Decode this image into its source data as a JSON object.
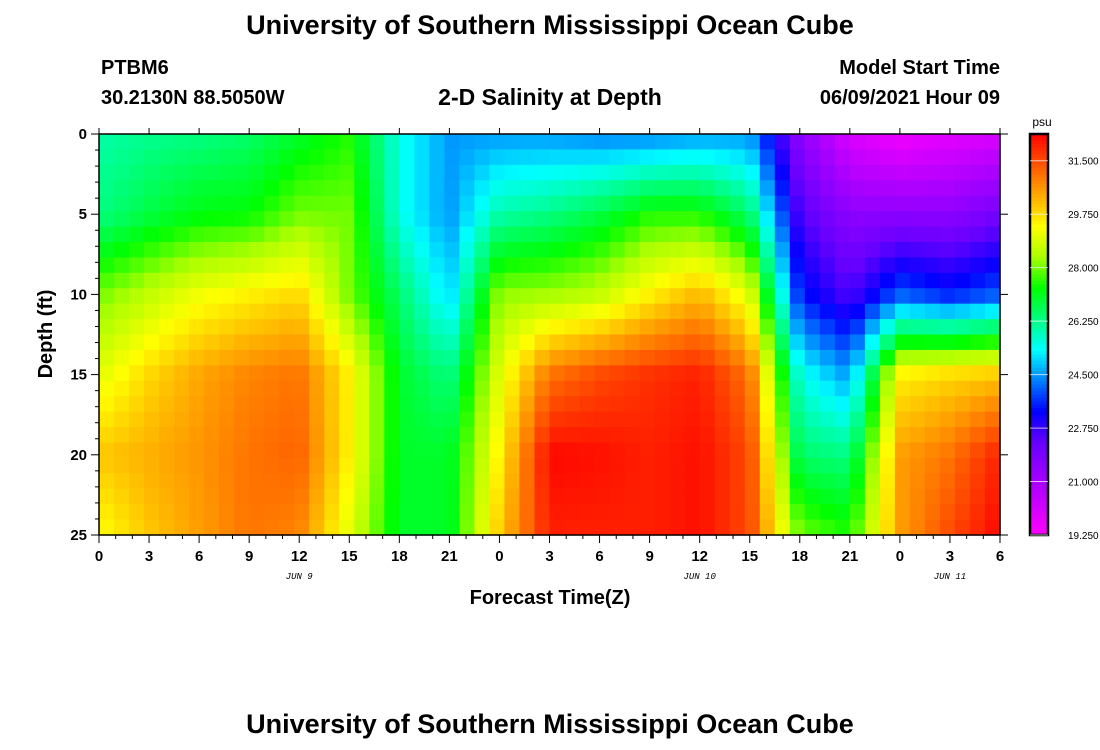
{
  "header": {
    "title": "University of Southern Mississippi Ocean Cube",
    "station": "PTBM6",
    "coords": "30.2130N  88.5050W",
    "plot_title": "2-D Salinity at Depth",
    "model_label": "Model Start Time",
    "model_time": "06/09/2021 Hour 09"
  },
  "footer": {
    "title": "University of Southern Mississippi Ocean Cube"
  },
  "chart_data": {
    "type": "heatmap",
    "title": "2-D Salinity at Depth",
    "xlabel": "Forecast Time(Z)",
    "ylabel": "Depth (ft)",
    "x_range_hours": [
      0,
      54
    ],
    "x_ticks": [
      "0",
      "3",
      "6",
      "9",
      "12",
      "15",
      "18",
      "21",
      "0",
      "3",
      "6",
      "9",
      "12",
      "15",
      "18",
      "21",
      "0",
      "3",
      "6"
    ],
    "y_ticks": [
      "0",
      "5",
      "10",
      "15",
      "20",
      "25"
    ],
    "y_range": [
      0,
      25
    ],
    "day_labels": [
      {
        "label": "JUN 9",
        "hour": 12
      },
      {
        "label": "JUN 10",
        "hour": 36
      },
      {
        "label": "JUN 11",
        "hour": 51
      }
    ],
    "colorbar": {
      "unit": "psu",
      "min": 19.25,
      "max": 32.375,
      "tick_labels": [
        "19.250",
        "21.000",
        "22.750",
        "24.500",
        "26.250",
        "28.000",
        "29.750",
        "31.500"
      ],
      "tick_values": [
        19.25,
        21.0,
        22.75,
        24.5,
        26.25,
        28.0,
        29.75,
        31.5
      ],
      "colors": [
        "#ff00ff",
        "#cc00ff",
        "#9900ff",
        "#6600ff",
        "#0000ff",
        "#0080ff",
        "#00ffff",
        "#00ff80",
        "#00ff00",
        "#aaff00",
        "#ffff00",
        "#ffaa00",
        "#ff5500",
        "#ff0000"
      ]
    },
    "depths_ft": [
      0,
      5,
      10,
      15,
      20,
      25
    ],
    "hours": [
      0,
      3,
      6,
      9,
      12,
      15,
      18,
      21,
      24,
      27,
      30,
      33,
      36,
      39,
      42,
      45,
      48,
      51,
      54
    ],
    "salinity_psu": [
      [
        26.0,
        26.2,
        26.3,
        26.5,
        27.0,
        27.5,
        25.5,
        24.5,
        24.5,
        24.5,
        24.3,
        24.3,
        24.5,
        24.5,
        21.5,
        20.0,
        19.5,
        19.8,
        20.0
      ],
      [
        26.3,
        26.8,
        27.2,
        27.3,
        28.0,
        28.0,
        25.5,
        24.5,
        26.0,
        26.3,
        26.8,
        27.5,
        27.5,
        26.5,
        22.5,
        21.5,
        21.5,
        21.5,
        22.0
      ],
      [
        28.0,
        28.6,
        29.2,
        29.5,
        29.8,
        28.0,
        26.5,
        25.0,
        28.2,
        28.3,
        28.6,
        29.5,
        30.2,
        29.0,
        23.5,
        22.5,
        24.0,
        23.5,
        24.0
      ],
      [
        29.0,
        29.8,
        30.4,
        30.8,
        31.0,
        29.5,
        27.0,
        26.3,
        29.0,
        31.0,
        31.5,
        31.8,
        32.0,
        31.0,
        25.5,
        24.5,
        29.5,
        29.8,
        30.0
      ],
      [
        30.0,
        30.3,
        30.6,
        31.0,
        31.2,
        29.5,
        27.0,
        27.0,
        29.5,
        32.3,
        32.2,
        32.0,
        32.2,
        31.5,
        26.5,
        26.3,
        30.5,
        31.0,
        32.0
      ],
      [
        29.3,
        30.0,
        30.5,
        31.0,
        30.8,
        29.0,
        27.0,
        27.0,
        30.0,
        32.0,
        32.0,
        32.0,
        32.2,
        31.5,
        28.0,
        27.5,
        30.5,
        31.5,
        32.3
      ]
    ]
  }
}
